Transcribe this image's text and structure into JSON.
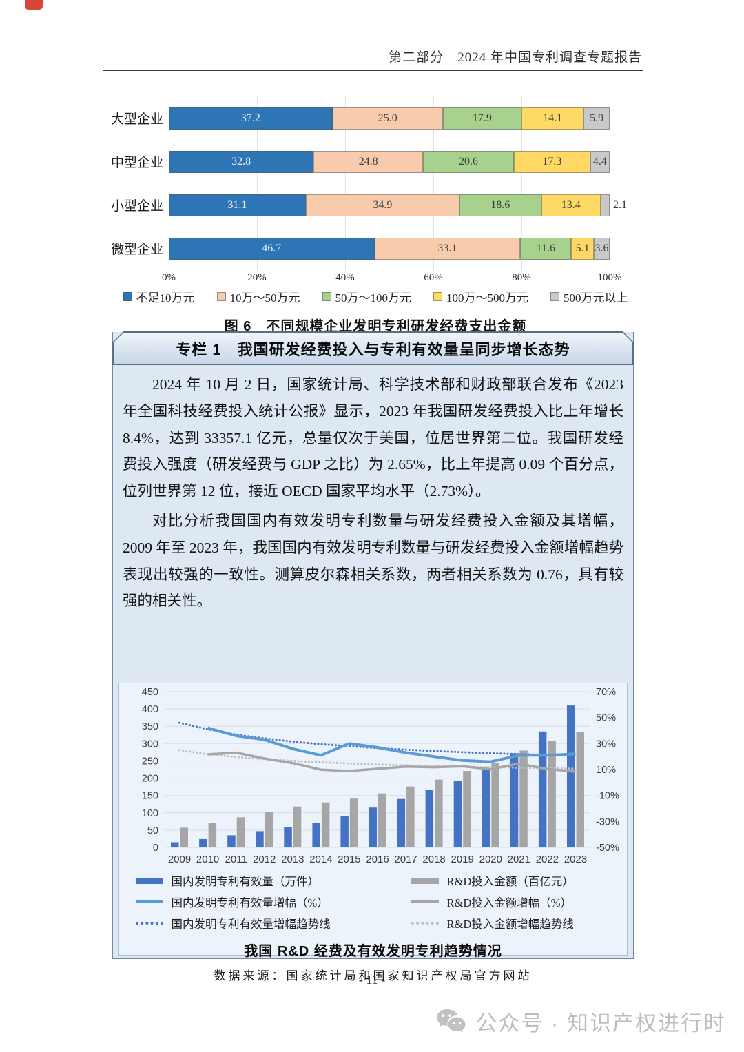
{
  "page": {
    "header_title": "第二部分　2024 年中国专利调查专题报告",
    "page_number": "- 11 -",
    "watermark_text": "公众号 · 知识产权进行时",
    "watermark_icon": "wechat-icon"
  },
  "column_box": {
    "title": "专栏 1　我国研发经费投入与专利有效量呈同步增长态势",
    "paragraphs": [
      "2024 年 10 月 2 日，国家统计局、科学技术部和财政部联合发布《2023 年全国科技经费投入统计公报》显示，2023 年我国研发经费投入比上年增长 8.4%，达到 33357.1 亿元，总量仅次于美国，位居世界第二位。我国研发经费投入强度（研发经费与 GDP 之比）为 2.65%，比上年提高 0.09 个百分点，位列世界第 12 位，接近 OECD 国家平均水平（2.73%）。",
      "对比分析我国国内有效发明专利数量与研发经费投入金额及其增幅，2009 年至 2023 年，我国国内有效发明专利数量与研发经费投入金额增幅趋势表现出较强的一致性。测算皮尔森相关系数，两者相关系数为 0.76，具有较强的相关性。"
    ]
  },
  "chart_data": [
    {
      "type": "bar",
      "orientation": "horizontal-stacked",
      "title": "图 6　不同规模企业发明专利研发经费支出金额",
      "categories": [
        "大型企业",
        "中型企业",
        "小型企业",
        "微型企业"
      ],
      "series": [
        {
          "name": "不足10万元",
          "color": "#2E75B6",
          "label_color": "#f2f2f2",
          "values": [
            37.2,
            32.8,
            31.1,
            46.7
          ]
        },
        {
          "name": "10万～50万元",
          "color": "#F8CBAD",
          "label_color": "#3d3d3d",
          "values": [
            25.0,
            24.8,
            34.9,
            33.1
          ]
        },
        {
          "name": "50万～100万元",
          "color": "#A9D18E",
          "label_color": "#3d3d3d",
          "values": [
            17.9,
            20.6,
            18.6,
            11.6
          ]
        },
        {
          "name": "100万～500万元",
          "color": "#FFD966",
          "label_color": "#3d3d3d",
          "values": [
            14.1,
            17.3,
            13.4,
            5.1
          ]
        },
        {
          "name": "500万元以上",
          "color": "#C9C9C9",
          "label_color": "#3d3d3d",
          "values": [
            5.9,
            4.4,
            2.1,
            3.6
          ]
        }
      ],
      "x_ticks": [
        "0%",
        "20%",
        "40%",
        "60%",
        "80%",
        "100%"
      ],
      "xlim": [
        0,
        100
      ],
      "grid": true
    },
    {
      "type": "combo",
      "title": "我国 R&D 经费及有效发明专利趋势情况",
      "source": "数据来源：国家统计局和国家知识产权局官方网站",
      "x": [
        2009,
        2010,
        2011,
        2012,
        2013,
        2014,
        2015,
        2016,
        2017,
        2018,
        2019,
        2020,
        2021,
        2022,
        2023
      ],
      "left_axis": {
        "min": 0,
        "max": 450,
        "step": 50
      },
      "right_axis": {
        "min": -50,
        "max": 70,
        "ticks": [
          "70%",
          "50%",
          "30%",
          "10%",
          "-10%",
          "-30%",
          "-50%"
        ],
        "tick_values": [
          70,
          50,
          30,
          10,
          -10,
          -30,
          -50
        ]
      },
      "series": [
        {
          "name": "国内发明专利有效量（万件）",
          "type": "bar",
          "axis": "left",
          "color": "#4472C4",
          "values": [
            15,
            24,
            35,
            47,
            58,
            70,
            90,
            115,
            140,
            166,
            193,
            224,
            272,
            335,
            410
          ]
        },
        {
          "name": "R&D投入金额（百亿元）",
          "type": "bar",
          "axis": "left",
          "color": "#A6A6A6",
          "values": [
            57,
            70,
            87,
            103,
            118,
            130,
            141,
            156,
            176,
            196,
            221,
            244,
            280,
            308,
            334
          ]
        },
        {
          "name": "国内发明专利有效量增幅（%）",
          "type": "line",
          "axis": "right",
          "color": "#5B9BD5",
          "values": [
            null,
            42,
            36,
            33,
            26,
            21,
            30,
            27,
            23,
            20,
            17,
            16,
            21,
            21,
            22
          ]
        },
        {
          "name": "R&D投入金额增幅（%）",
          "type": "line",
          "axis": "right",
          "color": "#A6A6A6",
          "values": [
            null,
            21.7,
            23.0,
            18.5,
            15.0,
            9.9,
            8.9,
            10.6,
            12.3,
            11.8,
            12.5,
            10.2,
            14.6,
            10.4,
            8.4
          ]
        },
        {
          "name": "国内发明专利有效量增幅趋势线",
          "type": "dotted",
          "axis": "right",
          "color": "#4472C4",
          "values": [
            46,
            41,
            37,
            34,
            31.5,
            29.5,
            28,
            26.5,
            25.3,
            24.3,
            23.4,
            22.6,
            21.9,
            21.2,
            20.6
          ]
        },
        {
          "name": "R&D投入金额增幅趋势线",
          "type": "dotted",
          "axis": "right",
          "color": "#BFBFBF",
          "values": [
            25,
            21.8,
            19.6,
            18,
            16.7,
            15.6,
            14.7,
            13.9,
            13.3,
            12.7,
            12.2,
            11.8,
            11.4,
            11,
            10.7
          ]
        }
      ],
      "grid": true,
      "legend_position": "bottom"
    }
  ]
}
